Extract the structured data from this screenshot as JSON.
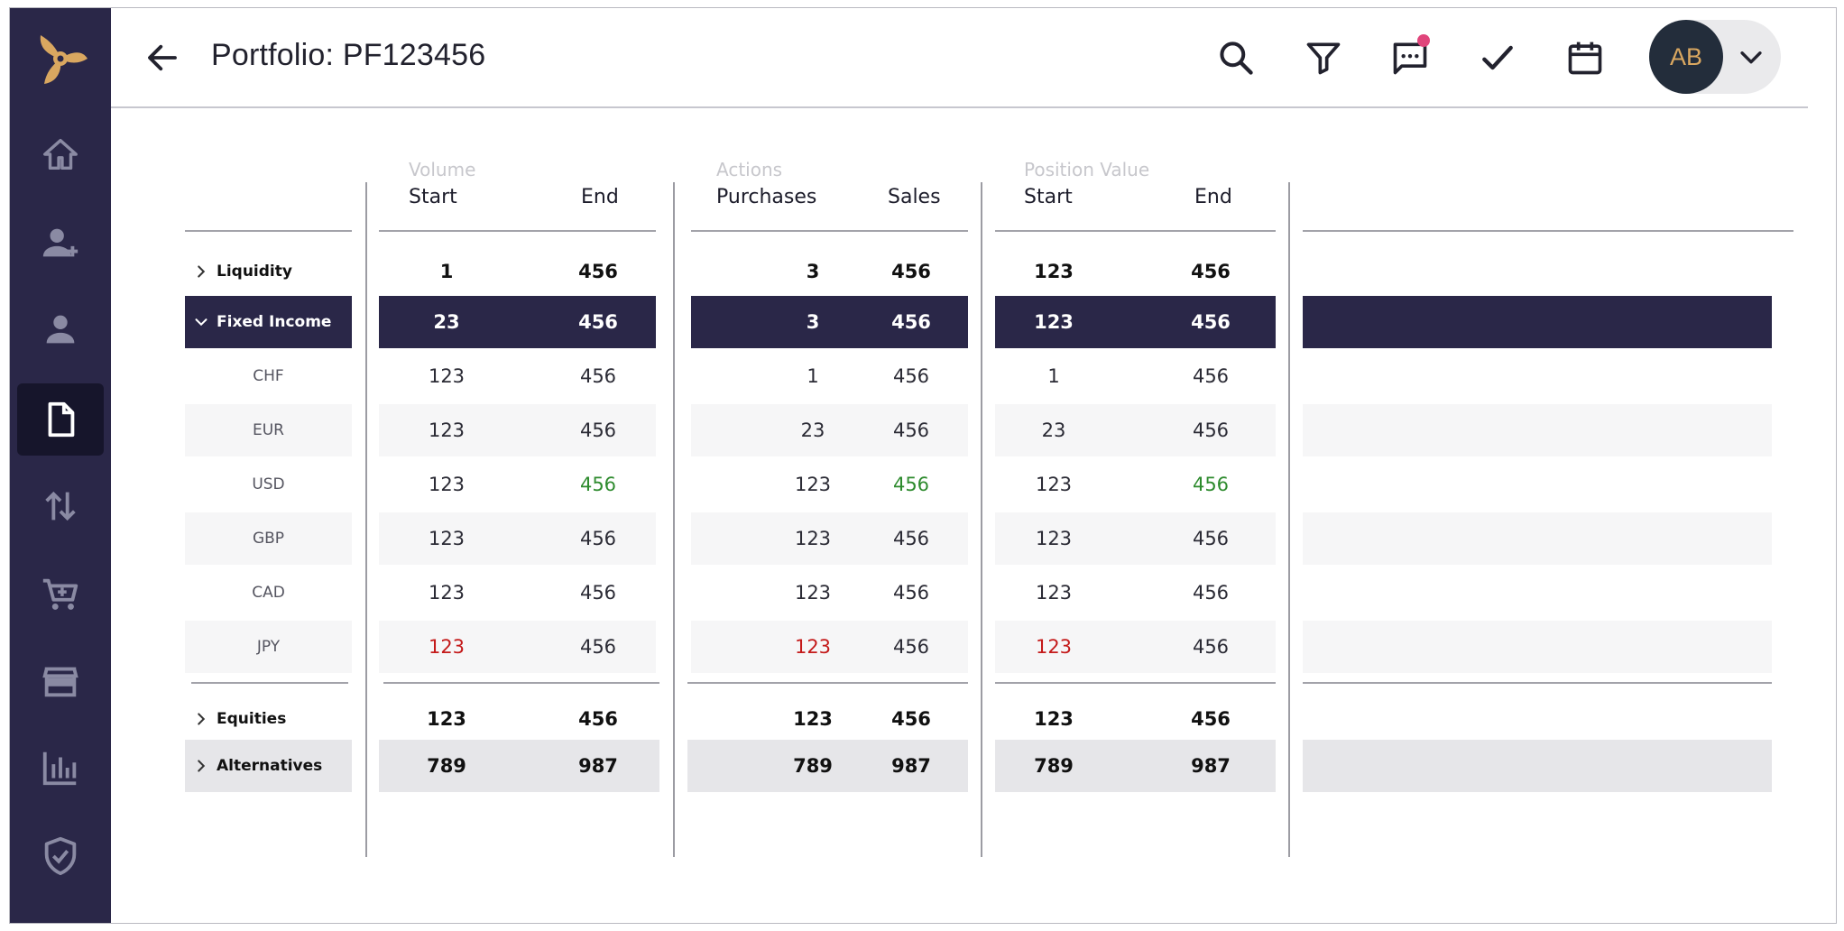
{
  "header": {
    "title": "Portfolio: PF123456",
    "user_initials": "AB"
  },
  "colors": {
    "sidebar": "#2a2748",
    "accent_logo": "#d9a760",
    "selected_row": "#2a2748",
    "notification": "#e0457b",
    "positive": "#2e8b2e",
    "negative": "#c41a1a"
  },
  "sidebar": {
    "items": [
      {
        "icon": "home-icon"
      },
      {
        "icon": "add-user-icon"
      },
      {
        "icon": "user-icon"
      },
      {
        "icon": "document-icon",
        "active": true
      },
      {
        "icon": "transfer-icon"
      },
      {
        "icon": "cart-icon"
      },
      {
        "icon": "store-icon"
      },
      {
        "icon": "bar-chart-icon"
      },
      {
        "icon": "shield-check-icon"
      }
    ]
  },
  "toolbar": {
    "icons": [
      "search-icon",
      "filter-icon",
      "comment-icon",
      "check-icon",
      "calendar-icon",
      "chevron-down-icon"
    ]
  },
  "table": {
    "groups": {
      "volume": "Volume",
      "actions": "Actions",
      "position": "Position Value"
    },
    "columns": {
      "vol_start": "Start",
      "vol_end": "End",
      "act_purchases": "Purchases",
      "act_sales": "Sales",
      "pos_start": "Start",
      "pos_end": "End"
    },
    "rows": [
      {
        "label": "Liquidity",
        "kind": "main",
        "values": [
          "1",
          "456",
          "3",
          "456",
          "123",
          "456"
        ]
      },
      {
        "label": "Fixed Income",
        "kind": "selected",
        "values": [
          "23",
          "456",
          "3",
          "456",
          "123",
          "456"
        ]
      },
      {
        "label": "CHF",
        "kind": "sub",
        "values": [
          "123",
          "456",
          "1",
          "456",
          "1",
          "456"
        ]
      },
      {
        "label": "EUR",
        "kind": "sub",
        "values": [
          "123",
          "456",
          "23",
          "456",
          "23",
          "456"
        ]
      },
      {
        "label": "USD",
        "kind": "sub",
        "values": [
          "123",
          "456",
          "123",
          "456",
          "123",
          "456"
        ]
      },
      {
        "label": "GBP",
        "kind": "sub",
        "values": [
          "123",
          "456",
          "123",
          "456",
          "123",
          "456"
        ]
      },
      {
        "label": "CAD",
        "kind": "sub",
        "values": [
          "123",
          "456",
          "123",
          "456",
          "123",
          "456"
        ]
      },
      {
        "label": "JPY",
        "kind": "sub",
        "values": [
          "123",
          "456",
          "123",
          "456",
          "123",
          "456"
        ]
      },
      {
        "label": "Equities",
        "kind": "main",
        "values": [
          "123",
          "456",
          "123",
          "456",
          "123",
          "456"
        ]
      },
      {
        "label": "Alternatives",
        "kind": "main",
        "values": [
          "789",
          "987",
          "789",
          "987",
          "789",
          "987"
        ]
      }
    ]
  }
}
